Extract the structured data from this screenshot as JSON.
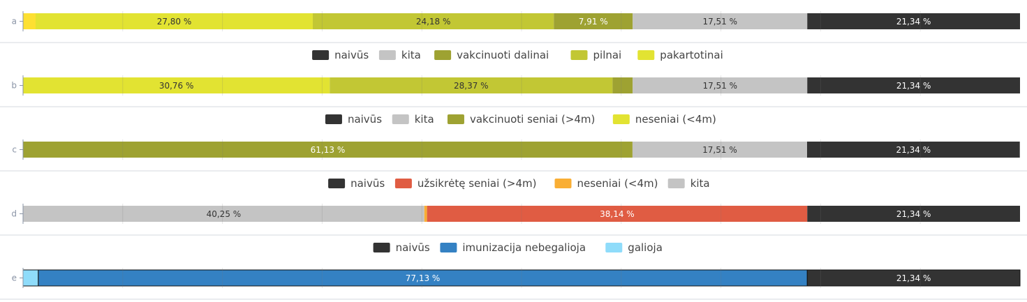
{
  "chart_data": [
    {
      "type": "bar",
      "orientation": "horizontal",
      "stacked": true,
      "category": "a",
      "legend": [],
      "segments": [
        {
          "name": "",
          "value": 1.26,
          "label": "",
          "color": "#fde032"
        },
        {
          "name": "pakartotinai",
          "value": 27.8,
          "label": "27,80 %",
          "color": "#e2e332"
        },
        {
          "name": "pilnai",
          "value": 24.18,
          "label": "24,18 %",
          "color": "#c2c734"
        },
        {
          "name": "vakcinuoti dalinai",
          "value": 7.91,
          "label": "7,91 %",
          "color": "#9ea232"
        },
        {
          "name": "kita",
          "value": 17.51,
          "label": "17,51 %",
          "color": "#c4c4c4"
        },
        {
          "name": "naivūs",
          "value": 21.34,
          "label": "21,34 %",
          "color": "#333333"
        }
      ]
    },
    {
      "type": "bar",
      "orientation": "horizontal",
      "stacked": true,
      "category": "b",
      "legend": [
        {
          "name": "naivūs",
          "color": "#333333"
        },
        {
          "name": "kita",
          "color": "#c4c4c4"
        },
        {
          "name": "vakcinuoti dalinai",
          "color": "#9ea232"
        },
        {
          "name": "pilnai",
          "color": "#c2c734"
        },
        {
          "name": "pakartotinai",
          "color": "#e2e332"
        }
      ],
      "segments": [
        {
          "name": "pakartotinai",
          "value": 30.76,
          "label": "30,76 %",
          "color": "#e2e332"
        },
        {
          "name": "pilnai",
          "value": 28.37,
          "label": "28,37 %",
          "color": "#c2c734"
        },
        {
          "name": "vakcinuoti dalinai",
          "value": 2.02,
          "label": "",
          "color": "#9ea232"
        },
        {
          "name": "kita",
          "value": 17.51,
          "label": "17,51 %",
          "color": "#c4c4c4"
        },
        {
          "name": "naivūs",
          "value": 21.34,
          "label": "21,34 %",
          "color": "#333333"
        }
      ]
    },
    {
      "type": "bar",
      "orientation": "horizontal",
      "stacked": true,
      "category": "c",
      "legend": [
        {
          "name": "naivūs",
          "color": "#333333"
        },
        {
          "name": "kita",
          "color": "#c4c4c4"
        },
        {
          "name": "vakcinuoti seniai (>4m)",
          "color": "#9ea232"
        },
        {
          "name": "neseniai (<4m)",
          "color": "#e2e332"
        }
      ],
      "segments": [
        {
          "name": "vakcinuoti seniai (>4m)",
          "value": 61.13,
          "label": "61,13 %",
          "color": "#9ea232"
        },
        {
          "name": "kita",
          "value": 17.51,
          "label": "17,51 %",
          "color": "#c4c4c4"
        },
        {
          "name": "naivūs",
          "value": 21.34,
          "label": "21,34 %",
          "color": "#333333"
        }
      ]
    },
    {
      "type": "bar",
      "orientation": "horizontal",
      "stacked": true,
      "category": "d",
      "legend": [
        {
          "name": "naivūs",
          "color": "#333333"
        },
        {
          "name": "užsikrėtę seniai (>4m)",
          "color": "#e05c43"
        },
        {
          "name": "neseniai (<4m)",
          "color": "#f9ae34"
        },
        {
          "name": "kita",
          "color": "#c4c4c4"
        }
      ],
      "segments": [
        {
          "name": "kita",
          "value": 40.25,
          "label": "40,25 %",
          "color": "#c4c4c4"
        },
        {
          "name": "neseniai (<4m)",
          "value": 0.27,
          "label": "",
          "color": "#f9ae34"
        },
        {
          "name": "užsikrėtę seniai (>4m)",
          "value": 38.14,
          "label": "38,14 %",
          "color": "#e05c43"
        },
        {
          "name": "naivūs",
          "value": 21.34,
          "label": "21,34 %",
          "color": "#333333"
        }
      ]
    },
    {
      "type": "bar",
      "orientation": "horizontal",
      "stacked": true,
      "category": "e",
      "outlined": true,
      "legend": [
        {
          "name": "naivūs",
          "color": "#333333"
        },
        {
          "name": "imunizacija nebegalioja",
          "color": "#3481c3"
        },
        {
          "name": "galioja",
          "color": "#8fdcfa"
        }
      ],
      "segments": [
        {
          "name": "galioja",
          "value": 1.53,
          "label": "",
          "color": "#8fdcfa"
        },
        {
          "name": "imunizacija nebegalioja",
          "value": 77.13,
          "label": "77,13 %",
          "color": "#3481c3"
        },
        {
          "name": "naivūs",
          "value": 21.34,
          "label": "21,34 %",
          "color": "#333333"
        }
      ]
    }
  ],
  "axis": {
    "xlim": [
      0,
      100
    ],
    "grid": true,
    "grid_step": 10
  }
}
